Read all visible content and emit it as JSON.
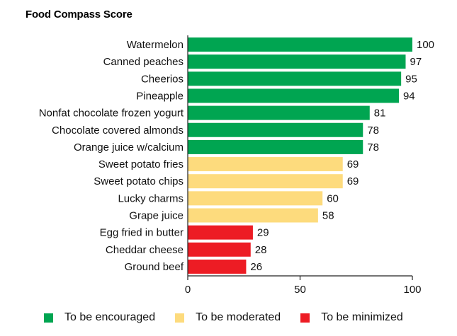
{
  "chart_data": {
    "type": "bar",
    "orientation": "horizontal",
    "title": "Food Compass Score",
    "categories": [
      "Watermelon",
      "Canned peaches",
      "Cheerios",
      "Pineapple",
      "Nonfat chocolate frozen yogurt",
      "Chocolate covered almonds",
      "Orange juice w/calcium",
      "Sweet potato fries",
      "Sweet potato chips",
      "Lucky charms",
      "Grape juice",
      "Egg fried in butter",
      "Cheddar cheese",
      "Ground beef"
    ],
    "values": [
      100,
      97,
      95,
      94,
      81,
      78,
      78,
      69,
      69,
      60,
      58,
      29,
      28,
      26
    ],
    "groups": [
      "encouraged",
      "encouraged",
      "encouraged",
      "encouraged",
      "encouraged",
      "encouraged",
      "encouraged",
      "moderated",
      "moderated",
      "moderated",
      "moderated",
      "minimized",
      "minimized",
      "minimized"
    ],
    "xlim": [
      0,
      100
    ],
    "xticks": [
      0,
      50,
      100
    ],
    "xlabel": "",
    "ylabel": "",
    "legend": [
      {
        "key": "encouraged",
        "label": "To be encouraged",
        "color": "#00A551"
      },
      {
        "key": "moderated",
        "label": "To be moderated",
        "color": "#FDDB7D"
      },
      {
        "key": "minimized",
        "label": "To be minimized",
        "color": "#ED1C24"
      }
    ],
    "legend_position": "bottom"
  }
}
